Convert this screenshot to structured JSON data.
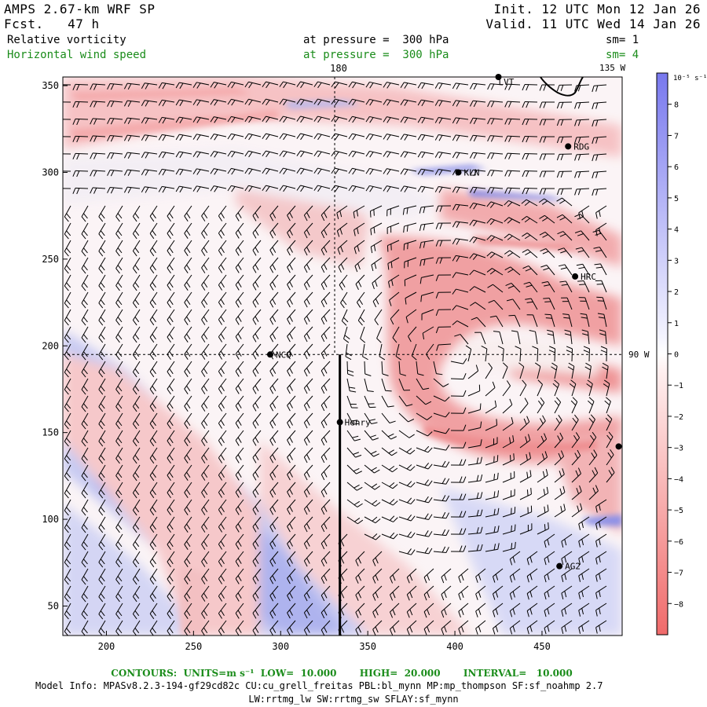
{
  "header": {
    "title": "AMPS 2.67-km WRF SP",
    "fcst_label": "Fcst.",
    "fcst_value": "47 h",
    "init_label": "Init.",
    "init_value": "12 UTC Mon 12 Jan 26",
    "valid_label": "Valid.",
    "valid_value": "11 UTC Wed 14 Jan 26",
    "field1_name": "Relative vorticity",
    "field1_level": "at pressure =  300 hPa",
    "field1_sm": "sm= 1",
    "field2_name": "Horizontal wind speed",
    "field2_level": "at pressure =  300 hPa",
    "field2_sm": "sm= 4"
  },
  "colors": {
    "field2_text": "#1a8c1a",
    "neg_strong": "#f07070",
    "pos_strong": "#8080ee",
    "background_field": "#ffffff"
  },
  "map": {
    "x_ticks": [
      "200",
      "250",
      "300",
      "350",
      "400",
      "450"
    ],
    "x_tick_values": [
      200,
      250,
      300,
      350,
      400,
      450
    ],
    "x_range": [
      175,
      496
    ],
    "y_ticks": [
      "50",
      "100",
      "150",
      "200",
      "250",
      "300",
      "350"
    ],
    "y_tick_values": [
      50,
      100,
      150,
      200,
      250,
      300,
      350
    ],
    "y_range": [
      33,
      355
    ],
    "meridian_180_label": "180",
    "meridian_180_x": 331,
    "meridian_135w_label": "135 W",
    "meridian_90w_label": "90 W",
    "parallel_y": 195,
    "henry_line_x": 334,
    "stations": [
      {
        "name": "LVT",
        "x": 425,
        "y": 355,
        "label_dx": -4,
        "label_dy": 6
      },
      {
        "name": "RDG",
        "x": 465,
        "y": 315,
        "label_dx": 3,
        "label_dy": 0
      },
      {
        "name": "KLN",
        "x": 402,
        "y": 300,
        "label_dx": 3,
        "label_dy": 0
      },
      {
        "name": "HRC",
        "x": 469,
        "y": 240,
        "label_dx": 3,
        "label_dy": 0
      },
      {
        "name": "NCO",
        "x": 294,
        "y": 195,
        "label_dx": 3,
        "label_dy": 0
      },
      {
        "name": "Henry",
        "x": 334,
        "y": 156,
        "label_dx": 2,
        "label_dy": 0
      },
      {
        "name": "",
        "x": 494,
        "y": 142,
        "label_dx": 0,
        "label_dy": 0
      },
      {
        "name": "AG2",
        "x": 460,
        "y": 73,
        "label_dx": 3,
        "label_dy": 0
      }
    ]
  },
  "colorbar": {
    "unit_label": "10⁻⁵ s⁻¹",
    "tick_labels": [
      "8",
      "7",
      "6",
      "5",
      "4",
      "3",
      "2",
      "1",
      "0",
      "−1",
      "−2",
      "−3",
      "−4",
      "−5",
      "−6",
      "−7",
      "−8"
    ],
    "tick_values": [
      8,
      7,
      6,
      5,
      4,
      3,
      2,
      1,
      0,
      -1,
      -2,
      -3,
      -4,
      -5,
      -6,
      -7,
      -8
    ]
  },
  "footer": {
    "contours_line": "CONTOURS:  UNITS=m s⁻¹  LOW=  10.000       HIGH=  20.000       INTERVAL=   10.000",
    "model_info": "Model Info: MPASv8.2.3-194-gf29cd82c CU:cu_grell_freitas PBL:bl_mynn MP:mp_thompson SF:sf_noahmp 2.7",
    "physics_line": "LW:rrtmg_lw SW:rrtmg_sw SFLAY:sf_mynn"
  }
}
